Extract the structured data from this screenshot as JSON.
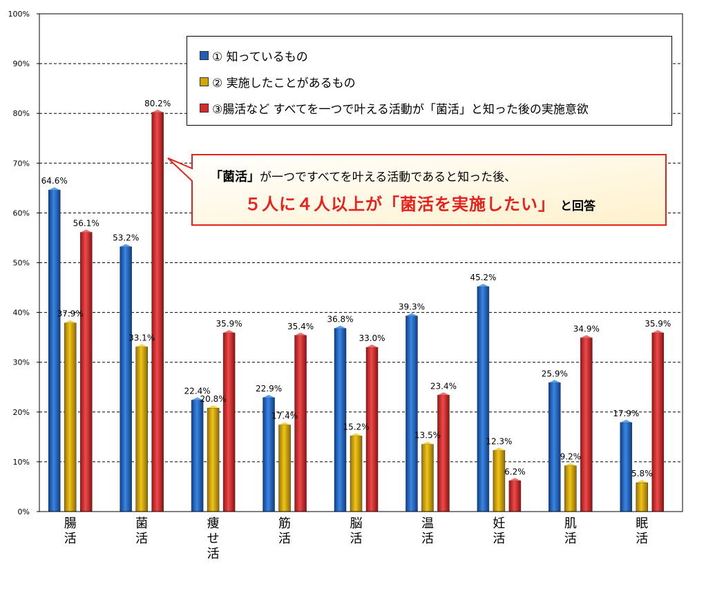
{
  "chart_data": {
    "type": "bar",
    "categories": [
      [
        "腸",
        "活"
      ],
      [
        "菌",
        "活"
      ],
      [
        "痩",
        "せ",
        "活"
      ],
      [
        "筋",
        "活"
      ],
      [
        "脳",
        "活"
      ],
      [
        "温",
        "活"
      ],
      [
        "妊",
        "活"
      ],
      [
        "肌",
        "活"
      ],
      [
        "眠",
        "活"
      ]
    ],
    "series": [
      {
        "name": "①  知っているもの",
        "color": "#1f5fb8",
        "values": [
          64.6,
          53.2,
          22.4,
          22.9,
          36.8,
          39.3,
          45.2,
          25.9,
          17.9
        ],
        "labels": [
          "64.6%",
          "53.2%",
          "22.4%",
          "22.9%",
          "36.8%",
          "39.3%",
          "45.2%",
          "25.9%",
          "17.9%"
        ]
      },
      {
        "name": "②  実施したことがあるもの",
        "color": "#d4a600",
        "values": [
          37.9,
          33.1,
          20.8,
          17.4,
          15.2,
          13.5,
          12.3,
          9.2,
          5.8
        ],
        "labels": [
          "37.9%",
          "33.1%",
          "20.8%",
          "17.4%",
          "15.2%",
          "13.5%",
          "12.3%",
          "9.2%",
          "5.8%"
        ]
      },
      {
        "name": "③腸活など すべてを一つで叶える活動が「菌活」と知った後の実施意欲",
        "color": "#d42a2a",
        "values": [
          56.1,
          80.2,
          35.9,
          35.4,
          33.0,
          23.4,
          6.2,
          34.9,
          35.9
        ],
        "labels": [
          "56.1%",
          "80.2%",
          "35.9%",
          "35.4%",
          "33.0%",
          "23.4%",
          "6.2%",
          "34.9%",
          "35.9%"
        ]
      }
    ],
    "ylim": [
      0,
      100
    ],
    "yticks": [
      0,
      10,
      20,
      30,
      40,
      50,
      60,
      70,
      80,
      90,
      100
    ],
    "ytick_labels": [
      "0%",
      "10%",
      "20%",
      "30%",
      "40%",
      "50%",
      "60%",
      "70%",
      "80%",
      "90%",
      "100%"
    ],
    "grid": true,
    "legend_position": "top-right",
    "title": "",
    "xlabel": "",
    "ylabel": ""
  },
  "callout": {
    "line1_highlight": "「菌活」",
    "line1_rest": "が一つですべてを叶える活動であると知った後、",
    "line2_red": "５人に４人以上が「菌活を実施したい」",
    "line2_tail": "と回答"
  }
}
